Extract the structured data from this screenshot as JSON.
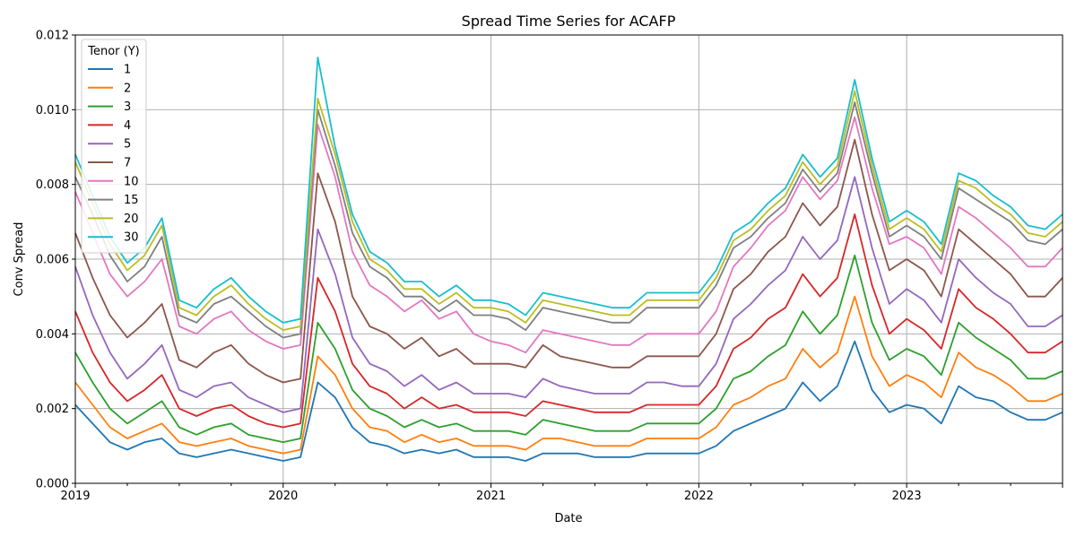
{
  "chart_data": {
    "type": "line",
    "title": "Spread Time Series for ACAFP",
    "xlabel": "Date",
    "ylabel": "Conv Spread",
    "legend_title": "Tenor (Y)",
    "legend_position": "top-left",
    "grid": true,
    "xlim": [
      "2019-01-01",
      "2023-10-01"
    ],
    "ylim": [
      0,
      0.012
    ],
    "x_ticks": [
      "2019",
      "2020",
      "2021",
      "2022",
      "2023"
    ],
    "y_ticks": [
      "0.000",
      "0.002",
      "0.004",
      "0.006",
      "0.008",
      "0.010",
      "0.012"
    ],
    "x": [
      "2019-01",
      "2019-02",
      "2019-03",
      "2019-04",
      "2019-05",
      "2019-06",
      "2019-07",
      "2019-08",
      "2019-09",
      "2019-10",
      "2019-11",
      "2019-12",
      "2020-01",
      "2020-02",
      "2020-03",
      "2020-04",
      "2020-05",
      "2020-06",
      "2020-07",
      "2020-08",
      "2020-09",
      "2020-10",
      "2020-11",
      "2020-12",
      "2021-01",
      "2021-02",
      "2021-03",
      "2021-04",
      "2021-05",
      "2021-06",
      "2021-07",
      "2021-08",
      "2021-09",
      "2021-10",
      "2021-11",
      "2021-12",
      "2022-01",
      "2022-02",
      "2022-03",
      "2022-04",
      "2022-05",
      "2022-06",
      "2022-07",
      "2022-08",
      "2022-09",
      "2022-10",
      "2022-11",
      "2022-12",
      "2023-01",
      "2023-02",
      "2023-03",
      "2023-04",
      "2023-05",
      "2023-06",
      "2023-07",
      "2023-08",
      "2023-09",
      "2023-10"
    ],
    "series": [
      {
        "name": "1",
        "color": "#1f77b4",
        "values": [
          0.0021,
          0.0016,
          0.0011,
          0.0009,
          0.0011,
          0.0012,
          0.0008,
          0.0007,
          0.0008,
          0.0009,
          0.0008,
          0.0007,
          0.0006,
          0.0007,
          0.0027,
          0.0023,
          0.0015,
          0.0011,
          0.001,
          0.0008,
          0.0009,
          0.0008,
          0.0009,
          0.0007,
          0.0007,
          0.0007,
          0.0006,
          0.0008,
          0.0008,
          0.0008,
          0.0007,
          0.0007,
          0.0007,
          0.0008,
          0.0008,
          0.0008,
          0.0008,
          0.001,
          0.0014,
          0.0016,
          0.0018,
          0.002,
          0.0027,
          0.0022,
          0.0026,
          0.0038,
          0.0025,
          0.0019,
          0.0021,
          0.002,
          0.0016,
          0.0026,
          0.0023,
          0.0022,
          0.0019,
          0.0017,
          0.0017,
          0.0019
        ]
      },
      {
        "name": "2",
        "color": "#ff7f0e",
        "values": [
          0.0027,
          0.0021,
          0.0015,
          0.0012,
          0.0014,
          0.0016,
          0.0011,
          0.001,
          0.0011,
          0.0012,
          0.001,
          0.0009,
          0.0008,
          0.0009,
          0.0034,
          0.0029,
          0.002,
          0.0015,
          0.0014,
          0.0011,
          0.0013,
          0.0011,
          0.0012,
          0.001,
          0.001,
          0.001,
          0.0009,
          0.0012,
          0.0012,
          0.0011,
          0.001,
          0.001,
          0.001,
          0.0012,
          0.0012,
          0.0012,
          0.0012,
          0.0015,
          0.0021,
          0.0023,
          0.0026,
          0.0028,
          0.0036,
          0.0031,
          0.0035,
          0.005,
          0.0034,
          0.0026,
          0.0029,
          0.0027,
          0.0023,
          0.0035,
          0.0031,
          0.0029,
          0.0026,
          0.0022,
          0.0022,
          0.0024
        ]
      },
      {
        "name": "3",
        "color": "#2ca02c",
        "values": [
          0.0035,
          0.0027,
          0.002,
          0.0016,
          0.0019,
          0.0022,
          0.0015,
          0.0013,
          0.0015,
          0.0016,
          0.0013,
          0.0012,
          0.0011,
          0.0012,
          0.0043,
          0.0036,
          0.0025,
          0.002,
          0.0018,
          0.0015,
          0.0017,
          0.0015,
          0.0016,
          0.0014,
          0.0014,
          0.0014,
          0.0013,
          0.0017,
          0.0016,
          0.0015,
          0.0014,
          0.0014,
          0.0014,
          0.0016,
          0.0016,
          0.0016,
          0.0016,
          0.002,
          0.0028,
          0.003,
          0.0034,
          0.0037,
          0.0046,
          0.004,
          0.0045,
          0.0061,
          0.0043,
          0.0033,
          0.0036,
          0.0034,
          0.0029,
          0.0043,
          0.0039,
          0.0036,
          0.0033,
          0.0028,
          0.0028,
          0.003
        ]
      },
      {
        "name": "4",
        "color": "#d62728",
        "values": [
          0.0046,
          0.0035,
          0.0027,
          0.0022,
          0.0025,
          0.0029,
          0.002,
          0.0018,
          0.002,
          0.0021,
          0.0018,
          0.0016,
          0.0015,
          0.0016,
          0.0055,
          0.0046,
          0.0032,
          0.0026,
          0.0024,
          0.002,
          0.0023,
          0.002,
          0.0021,
          0.0019,
          0.0019,
          0.0019,
          0.0018,
          0.0022,
          0.0021,
          0.002,
          0.0019,
          0.0019,
          0.0019,
          0.0021,
          0.0021,
          0.0021,
          0.0021,
          0.0026,
          0.0036,
          0.0039,
          0.0044,
          0.0047,
          0.0056,
          0.005,
          0.0055,
          0.0072,
          0.0053,
          0.004,
          0.0044,
          0.0041,
          0.0036,
          0.0052,
          0.0047,
          0.0044,
          0.004,
          0.0035,
          0.0035,
          0.0038
        ]
      },
      {
        "name": "5",
        "color": "#9467bd",
        "values": [
          0.0058,
          0.0045,
          0.0035,
          0.0028,
          0.0032,
          0.0037,
          0.0025,
          0.0023,
          0.0026,
          0.0027,
          0.0023,
          0.0021,
          0.0019,
          0.002,
          0.0068,
          0.0056,
          0.0039,
          0.0032,
          0.003,
          0.0026,
          0.0029,
          0.0025,
          0.0027,
          0.0024,
          0.0024,
          0.0024,
          0.0023,
          0.0028,
          0.0026,
          0.0025,
          0.0024,
          0.0024,
          0.0024,
          0.0027,
          0.0027,
          0.0026,
          0.0026,
          0.0032,
          0.0044,
          0.0048,
          0.0053,
          0.0057,
          0.0066,
          0.006,
          0.0065,
          0.0082,
          0.0063,
          0.0048,
          0.0052,
          0.0049,
          0.0043,
          0.006,
          0.0055,
          0.0051,
          0.0048,
          0.0042,
          0.0042,
          0.0045
        ]
      },
      {
        "name": "7",
        "color": "#8c564b",
        "values": [
          0.0067,
          0.0055,
          0.0045,
          0.0039,
          0.0043,
          0.0048,
          0.0033,
          0.0031,
          0.0035,
          0.0037,
          0.0032,
          0.0029,
          0.0027,
          0.0028,
          0.0083,
          0.007,
          0.005,
          0.0042,
          0.004,
          0.0036,
          0.0039,
          0.0034,
          0.0036,
          0.0032,
          0.0032,
          0.0032,
          0.0031,
          0.0037,
          0.0034,
          0.0033,
          0.0032,
          0.0031,
          0.0031,
          0.0034,
          0.0034,
          0.0034,
          0.0034,
          0.004,
          0.0052,
          0.0056,
          0.0062,
          0.0066,
          0.0075,
          0.0069,
          0.0074,
          0.0092,
          0.0072,
          0.0057,
          0.006,
          0.0057,
          0.005,
          0.0068,
          0.0064,
          0.006,
          0.0056,
          0.005,
          0.005,
          0.0055
        ]
      },
      {
        "name": "10",
        "color": "#e377c2",
        "values": [
          0.0078,
          0.0067,
          0.0056,
          0.005,
          0.0054,
          0.006,
          0.0042,
          0.004,
          0.0044,
          0.0046,
          0.0041,
          0.0038,
          0.0036,
          0.0037,
          0.0096,
          0.0082,
          0.0062,
          0.0053,
          0.005,
          0.0046,
          0.0049,
          0.0044,
          0.0046,
          0.004,
          0.0038,
          0.0037,
          0.0035,
          0.0041,
          0.004,
          0.0039,
          0.0038,
          0.0037,
          0.0037,
          0.004,
          0.004,
          0.004,
          0.004,
          0.0046,
          0.0058,
          0.0063,
          0.0069,
          0.0073,
          0.0082,
          0.0076,
          0.0081,
          0.0098,
          0.0079,
          0.0064,
          0.0066,
          0.0063,
          0.0056,
          0.0074,
          0.0071,
          0.0067,
          0.0063,
          0.0058,
          0.0058,
          0.0063
        ]
      },
      {
        "name": "15",
        "color": "#7f7f7f",
        "values": [
          0.0082,
          0.0072,
          0.0061,
          0.0054,
          0.0058,
          0.0066,
          0.0045,
          0.0043,
          0.0048,
          0.005,
          0.0046,
          0.0042,
          0.0039,
          0.004,
          0.01,
          0.0085,
          0.0067,
          0.0058,
          0.0055,
          0.005,
          0.005,
          0.0046,
          0.0049,
          0.0045,
          0.0045,
          0.0044,
          0.0041,
          0.0047,
          0.0046,
          0.0045,
          0.0044,
          0.0043,
          0.0043,
          0.0047,
          0.0047,
          0.0047,
          0.0047,
          0.0053,
          0.0063,
          0.0066,
          0.0071,
          0.0075,
          0.0084,
          0.0078,
          0.0083,
          0.0102,
          0.0083,
          0.0066,
          0.0069,
          0.0066,
          0.006,
          0.0079,
          0.0076,
          0.0073,
          0.007,
          0.0065,
          0.0064,
          0.0068
        ]
      },
      {
        "name": "20",
        "color": "#bcbd22",
        "values": [
          0.0086,
          0.0075,
          0.0064,
          0.0057,
          0.0061,
          0.0069,
          0.0047,
          0.0045,
          0.005,
          0.0053,
          0.0048,
          0.0044,
          0.0041,
          0.0042,
          0.0103,
          0.0088,
          0.007,
          0.006,
          0.0057,
          0.0052,
          0.0052,
          0.0048,
          0.0051,
          0.0047,
          0.0047,
          0.0046,
          0.0043,
          0.0049,
          0.0048,
          0.0047,
          0.0046,
          0.0045,
          0.0045,
          0.0049,
          0.0049,
          0.0049,
          0.0049,
          0.0055,
          0.0065,
          0.0068,
          0.0073,
          0.0077,
          0.0086,
          0.008,
          0.0085,
          0.0105,
          0.0085,
          0.0068,
          0.0071,
          0.0068,
          0.0062,
          0.0081,
          0.0079,
          0.0075,
          0.0072,
          0.0067,
          0.0066,
          0.007
        ]
      },
      {
        "name": "30",
        "color": "#17becf",
        "values": [
          0.0088,
          0.0077,
          0.0066,
          0.0059,
          0.0063,
          0.0071,
          0.0049,
          0.0047,
          0.0052,
          0.0055,
          0.005,
          0.0046,
          0.0043,
          0.0044,
          0.0114,
          0.009,
          0.0072,
          0.0062,
          0.0059,
          0.0054,
          0.0054,
          0.005,
          0.0053,
          0.0049,
          0.0049,
          0.0048,
          0.0045,
          0.0051,
          0.005,
          0.0049,
          0.0048,
          0.0047,
          0.0047,
          0.0051,
          0.0051,
          0.0051,
          0.0051,
          0.0057,
          0.0067,
          0.007,
          0.0075,
          0.0079,
          0.0088,
          0.0082,
          0.0087,
          0.0108,
          0.0087,
          0.007,
          0.0073,
          0.007,
          0.0064,
          0.0083,
          0.0081,
          0.0077,
          0.0074,
          0.0069,
          0.0068,
          0.0072
        ]
      }
    ]
  }
}
